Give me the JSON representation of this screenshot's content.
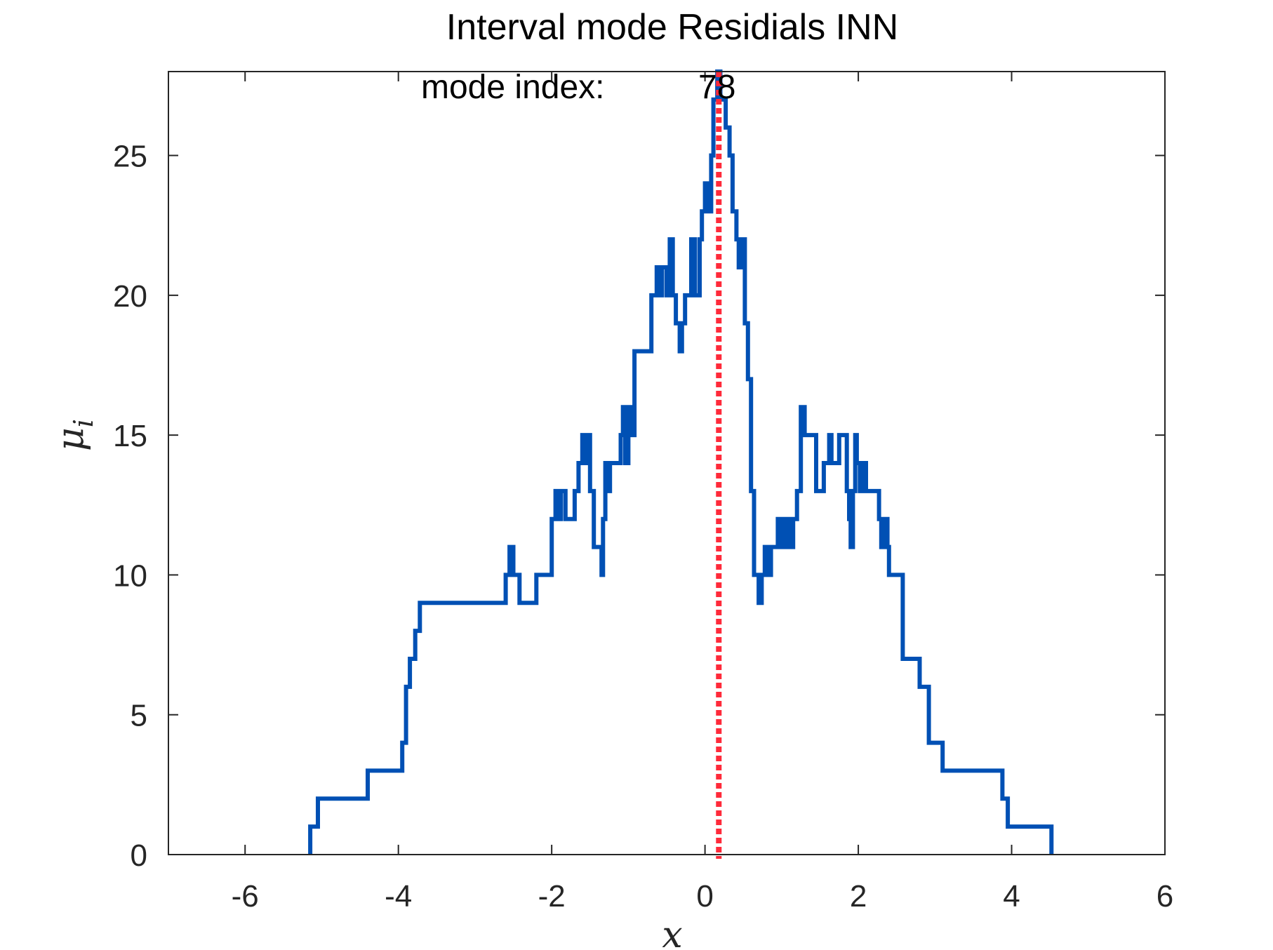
{
  "chart_data": {
    "type": "line",
    "title": "Interval mode Residials INN",
    "xlabel": "x",
    "ylabel": "μ",
    "ylabel_subscript": "i",
    "xlim": [
      -7,
      6
    ],
    "ylim": [
      0,
      28
    ],
    "x_ticks": [
      -6,
      -4,
      -2,
      0,
      2,
      4,
      6
    ],
    "y_ticks": [
      0,
      5,
      10,
      15,
      20,
      25
    ],
    "grid": false,
    "annotation": {
      "label": "mode index:",
      "value": "78"
    },
    "mode_line_x": 0.18,
    "colors": {
      "series": "#0050b4",
      "mode_line": "#ff2a3a",
      "axis": "#262626"
    },
    "series": [
      {
        "points": [
          [
            -5.15,
            0
          ],
          [
            -5.15,
            1
          ],
          [
            -5.05,
            1
          ],
          [
            -5.05,
            2
          ],
          [
            -4.4,
            2
          ],
          [
            -4.4,
            3
          ],
          [
            -3.95,
            3
          ],
          [
            -3.95,
            4
          ],
          [
            -3.9,
            4
          ],
          [
            -3.9,
            6
          ],
          [
            -3.85,
            6
          ],
          [
            -3.85,
            7
          ],
          [
            -3.78,
            7
          ],
          [
            -3.78,
            8
          ],
          [
            -3.72,
            8
          ],
          [
            -3.72,
            9
          ],
          [
            -2.6,
            9
          ],
          [
            -2.6,
            10
          ],
          [
            -2.55,
            10
          ],
          [
            -2.55,
            11
          ],
          [
            -2.5,
            11
          ],
          [
            -2.5,
            10
          ],
          [
            -2.42,
            10
          ],
          [
            -2.42,
            9
          ],
          [
            -2.2,
            9
          ],
          [
            -2.2,
            10
          ],
          [
            -2.0,
            10
          ],
          [
            -2.0,
            12
          ],
          [
            -1.95,
            12
          ],
          [
            -1.95,
            13
          ],
          [
            -1.92,
            13
          ],
          [
            -1.92,
            12
          ],
          [
            -1.88,
            12
          ],
          [
            -1.88,
            13
          ],
          [
            -1.82,
            13
          ],
          [
            -1.82,
            12
          ],
          [
            -1.7,
            12
          ],
          [
            -1.7,
            13
          ],
          [
            -1.65,
            13
          ],
          [
            -1.65,
            14
          ],
          [
            -1.6,
            14
          ],
          [
            -1.6,
            15
          ],
          [
            -1.57,
            15
          ],
          [
            -1.57,
            14
          ],
          [
            -1.54,
            14
          ],
          [
            -1.54,
            15
          ],
          [
            -1.5,
            15
          ],
          [
            -1.5,
            13
          ],
          [
            -1.45,
            13
          ],
          [
            -1.45,
            11
          ],
          [
            -1.35,
            11
          ],
          [
            -1.35,
            10
          ],
          [
            -1.33,
            10
          ],
          [
            -1.33,
            12
          ],
          [
            -1.3,
            12
          ],
          [
            -1.3,
            14
          ],
          [
            -1.27,
            14
          ],
          [
            -1.27,
            13
          ],
          [
            -1.24,
            13
          ],
          [
            -1.24,
            14
          ],
          [
            -1.1,
            14
          ],
          [
            -1.1,
            15
          ],
          [
            -1.07,
            15
          ],
          [
            -1.07,
            16
          ],
          [
            -1.04,
            16
          ],
          [
            -1.04,
            14
          ],
          [
            -1.0,
            14
          ],
          [
            -1.0,
            16
          ],
          [
            -0.96,
            16
          ],
          [
            -0.96,
            15
          ],
          [
            -0.92,
            15
          ],
          [
            -0.92,
            18
          ],
          [
            -0.7,
            18
          ],
          [
            -0.7,
            20
          ],
          [
            -0.63,
            20
          ],
          [
            -0.63,
            21
          ],
          [
            -0.6,
            21
          ],
          [
            -0.6,
            20
          ],
          [
            -0.56,
            20
          ],
          [
            -0.56,
            21
          ],
          [
            -0.5,
            21
          ],
          [
            -0.5,
            20
          ],
          [
            -0.46,
            20
          ],
          [
            -0.46,
            22
          ],
          [
            -0.42,
            22
          ],
          [
            -0.42,
            20
          ],
          [
            -0.38,
            20
          ],
          [
            -0.38,
            19
          ],
          [
            -0.33,
            19
          ],
          [
            -0.33,
            18
          ],
          [
            -0.3,
            18
          ],
          [
            -0.3,
            19
          ],
          [
            -0.26,
            19
          ],
          [
            -0.26,
            20
          ],
          [
            -0.18,
            20
          ],
          [
            -0.18,
            22
          ],
          [
            -0.13,
            22
          ],
          [
            -0.13,
            20
          ],
          [
            -0.07,
            20
          ],
          [
            -0.07,
            22
          ],
          [
            -0.04,
            22
          ],
          [
            -0.04,
            23
          ],
          [
            0.0,
            23
          ],
          [
            0.0,
            24
          ],
          [
            0.04,
            24
          ],
          [
            0.04,
            23
          ],
          [
            0.08,
            23
          ],
          [
            0.08,
            25
          ],
          [
            0.11,
            25
          ],
          [
            0.11,
            27
          ],
          [
            0.16,
            27
          ],
          [
            0.16,
            28
          ],
          [
            0.2,
            28
          ],
          [
            0.2,
            27
          ],
          [
            0.27,
            27
          ],
          [
            0.27,
            26
          ],
          [
            0.32,
            26
          ],
          [
            0.32,
            25
          ],
          [
            0.36,
            25
          ],
          [
            0.36,
            23
          ],
          [
            0.41,
            23
          ],
          [
            0.41,
            22
          ],
          [
            0.44,
            22
          ],
          [
            0.44,
            21
          ],
          [
            0.47,
            21
          ],
          [
            0.47,
            22
          ],
          [
            0.52,
            22
          ],
          [
            0.52,
            19
          ],
          [
            0.56,
            19
          ],
          [
            0.56,
            17
          ],
          [
            0.6,
            17
          ],
          [
            0.6,
            13
          ],
          [
            0.64,
            13
          ],
          [
            0.64,
            10
          ],
          [
            0.7,
            10
          ],
          [
            0.7,
            9
          ],
          [
            0.74,
            9
          ],
          [
            0.74,
            10
          ],
          [
            0.78,
            10
          ],
          [
            0.78,
            11
          ],
          [
            0.82,
            11
          ],
          [
            0.82,
            10
          ],
          [
            0.86,
            10
          ],
          [
            0.86,
            11
          ],
          [
            0.95,
            11
          ],
          [
            0.95,
            12
          ],
          [
            1.0,
            12
          ],
          [
            1.0,
            11
          ],
          [
            1.05,
            11
          ],
          [
            1.05,
            12
          ],
          [
            1.1,
            12
          ],
          [
            1.1,
            11
          ],
          [
            1.15,
            11
          ],
          [
            1.15,
            12
          ],
          [
            1.2,
            12
          ],
          [
            1.2,
            13
          ],
          [
            1.25,
            13
          ],
          [
            1.25,
            16
          ],
          [
            1.3,
            16
          ],
          [
            1.3,
            15
          ],
          [
            1.45,
            15
          ],
          [
            1.45,
            13
          ],
          [
            1.55,
            13
          ],
          [
            1.55,
            14
          ],
          [
            1.62,
            14
          ],
          [
            1.62,
            15
          ],
          [
            1.65,
            15
          ],
          [
            1.65,
            14
          ],
          [
            1.75,
            14
          ],
          [
            1.75,
            15
          ],
          [
            1.85,
            15
          ],
          [
            1.85,
            13
          ],
          [
            1.88,
            13
          ],
          [
            1.88,
            12
          ],
          [
            1.9,
            12
          ],
          [
            1.9,
            11
          ],
          [
            1.93,
            11
          ],
          [
            1.93,
            13
          ],
          [
            1.96,
            13
          ],
          [
            1.96,
            15
          ],
          [
            1.98,
            15
          ],
          [
            1.98,
            14
          ],
          [
            2.02,
            14
          ],
          [
            2.02,
            13
          ],
          [
            2.06,
            13
          ],
          [
            2.06,
            14
          ],
          [
            2.1,
            14
          ],
          [
            2.1,
            13
          ],
          [
            2.27,
            13
          ],
          [
            2.27,
            12
          ],
          [
            2.3,
            12
          ],
          [
            2.3,
            11
          ],
          [
            2.33,
            11
          ],
          [
            2.33,
            12
          ],
          [
            2.38,
            12
          ],
          [
            2.38,
            11
          ],
          [
            2.4,
            11
          ],
          [
            2.4,
            10
          ],
          [
            2.58,
            10
          ],
          [
            2.58,
            7
          ],
          [
            2.8,
            7
          ],
          [
            2.8,
            6
          ],
          [
            2.92,
            6
          ],
          [
            2.92,
            4
          ],
          [
            3.1,
            4
          ],
          [
            3.1,
            3
          ],
          [
            3.88,
            3
          ],
          [
            3.88,
            2
          ],
          [
            3.95,
            2
          ],
          [
            3.95,
            1
          ],
          [
            4.52,
            1
          ],
          [
            4.52,
            0
          ]
        ]
      }
    ]
  }
}
